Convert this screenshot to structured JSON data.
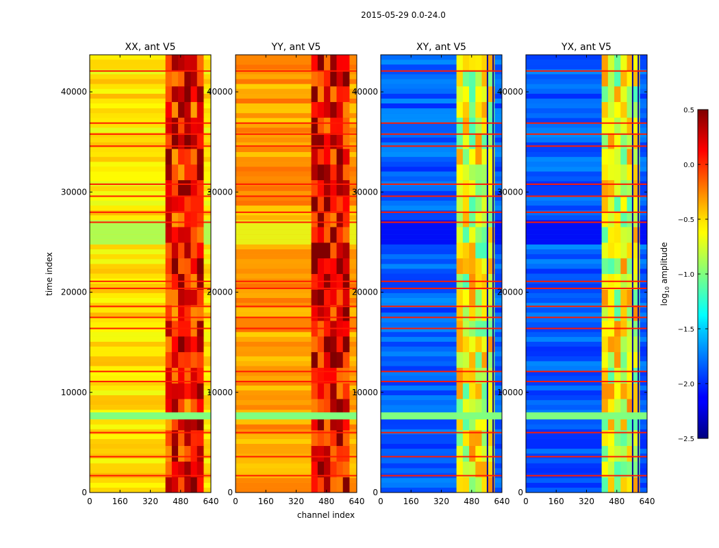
{
  "figure": {
    "suptitle": "2015-05-29 0.0-24.0",
    "xlabel": "channel index",
    "ylabel": "time index"
  },
  "colorbar": {
    "label_prefix": "log",
    "label_sub": "10",
    "label_suffix": " amplitude",
    "range": [
      -2.5,
      0.5
    ],
    "ticks": [
      0.5,
      0.0,
      -0.5,
      -1.0,
      -1.5,
      -2.0,
      -2.5
    ],
    "tick_labels": [
      "0.5",
      "0.0",
      "−0.5",
      "−1.0",
      "−1.5",
      "−2.0",
      "−2.5"
    ],
    "colormap": "jet"
  },
  "chart_data": [
    {
      "type": "heatmap",
      "title": "XX, ant V5",
      "polarization": "XX",
      "xlim": [
        0,
        640
      ],
      "ylim": [
        0,
        43700
      ],
      "xticks": [
        0,
        160,
        320,
        480,
        640
      ],
      "yticks": [
        0,
        10000,
        20000,
        30000,
        40000
      ],
      "base_level": -0.55,
      "band_level": -0.05,
      "band_channels": [
        400,
        600
      ],
      "color_scale": "log10 amplitude"
    },
    {
      "type": "heatmap",
      "title": "YY, ant V5",
      "polarization": "YY",
      "xlim": [
        0,
        640
      ],
      "ylim": [
        0,
        43700
      ],
      "xticks": [
        0,
        160,
        320,
        480,
        640
      ],
      "yticks": [
        0,
        10000,
        20000,
        30000,
        40000
      ],
      "base_level": -0.35,
      "band_level": 0.05,
      "band_channels": [
        400,
        600
      ],
      "color_scale": "log10 amplitude"
    },
    {
      "type": "heatmap",
      "title": "XY, ant V5",
      "polarization": "XY",
      "xlim": [
        0,
        640
      ],
      "ylim": [
        0,
        43700
      ],
      "xticks": [
        0,
        160,
        320,
        480,
        640
      ],
      "yticks": [
        0,
        10000,
        20000,
        30000,
        40000
      ],
      "base_level": -1.85,
      "band_level": -0.85,
      "band_channels": [
        400,
        600
      ],
      "color_scale": "log10 amplitude"
    },
    {
      "type": "heatmap",
      "title": "YX, ant V5",
      "polarization": "YX",
      "xlim": [
        0,
        640
      ],
      "ylim": [
        0,
        43700
      ],
      "xticks": [
        0,
        160,
        320,
        480,
        640
      ],
      "yticks": [
        0,
        10000,
        20000,
        30000,
        40000
      ],
      "base_level": -1.85,
      "band_level": -0.85,
      "band_channels": [
        400,
        600
      ],
      "color_scale": "log10 amplitude"
    }
  ]
}
